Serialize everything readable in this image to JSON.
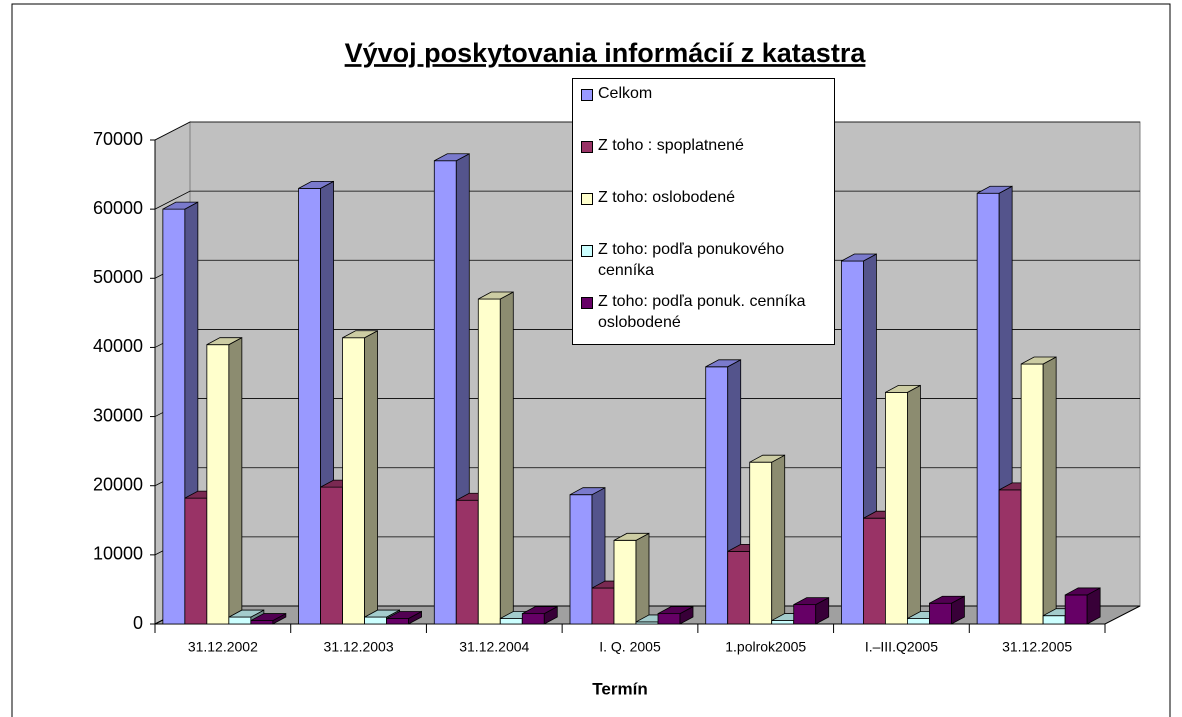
{
  "chart_data": {
    "type": "bar3d",
    "title": "Vývoj poskytovania informácií z katastra",
    "x_label": "Termín",
    "categories": [
      "31.12.2002",
      "31.12.2003",
      "31.12.2004",
      "I. Q. 2005",
      "1.polrok2005",
      "I.–III.Q2005",
      "31.12.2005"
    ],
    "series": [
      {
        "name": "Celkom",
        "color": "#9999ff",
        "values": [
          60000,
          63000,
          67000,
          18700,
          37200,
          52500,
          62300
        ]
      },
      {
        "name": "Z toho : spoplatnené",
        "color": "#993366",
        "values": [
          18200,
          19800,
          17900,
          5200,
          10500,
          15300,
          19400
        ]
      },
      {
        "name": "Z toho: oslobodené",
        "color": "#ffffcc",
        "values": [
          40400,
          41400,
          47000,
          12100,
          23400,
          33500,
          37600
        ]
      },
      {
        "name": "Z toho:  podľa ponukového cenníka",
        "color": "#ccffff",
        "values": [
          1000,
          1000,
          800,
          300,
          500,
          800,
          1200
        ]
      },
      {
        "name": "Z toho:  podľa ponuk. cenníka oslobodené",
        "color": "#660066",
        "values": [
          500,
          800,
          1500,
          1500,
          2800,
          3000,
          4200
        ]
      }
    ],
    "ylim": [
      0,
      70000
    ],
    "yticks": [
      0,
      10000,
      20000,
      30000,
      40000,
      50000,
      60000,
      70000
    ],
    "grid": true
  }
}
